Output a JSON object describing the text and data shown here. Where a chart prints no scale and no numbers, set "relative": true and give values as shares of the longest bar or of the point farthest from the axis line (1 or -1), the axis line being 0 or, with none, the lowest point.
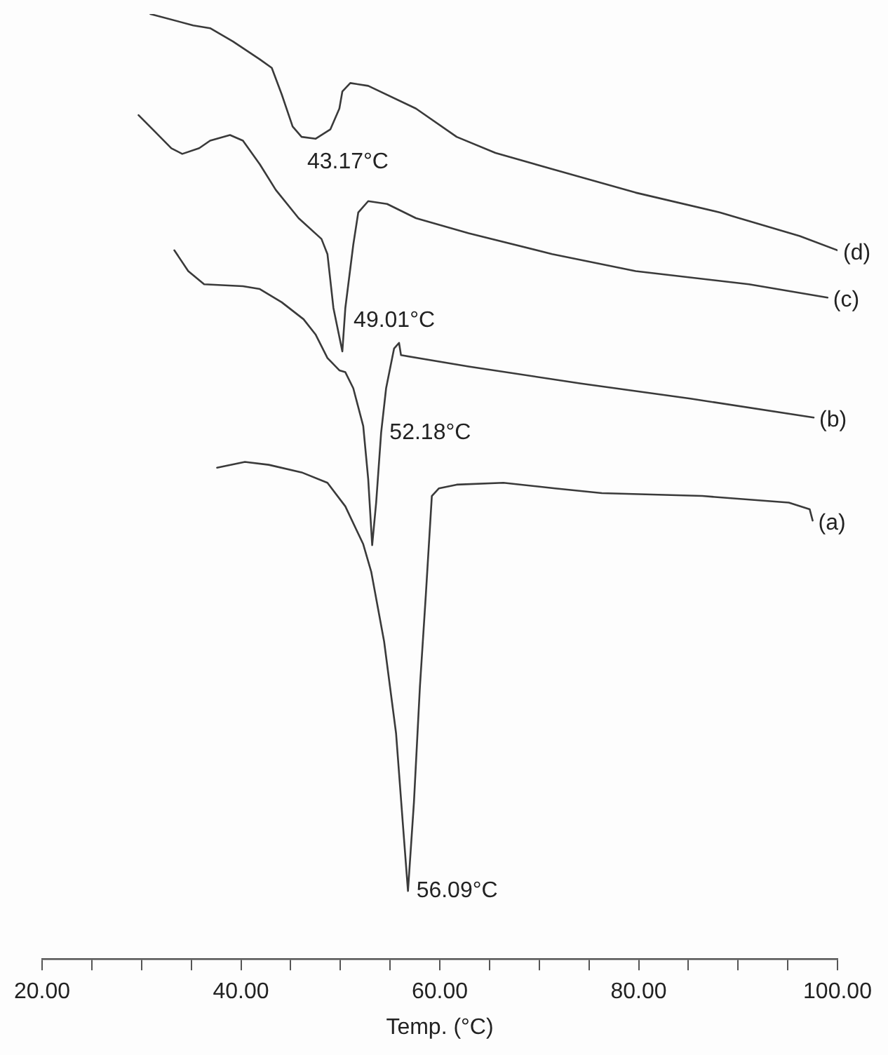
{
  "chart_data": {
    "type": "line",
    "relative": true,
    "xlabel": "Temp. (°C)",
    "xlim": [
      20,
      100
    ],
    "xticks": [
      {
        "value": 20,
        "label": "20.00"
      },
      {
        "value": 25,
        "label": null
      },
      {
        "value": 30,
        "label": null
      },
      {
        "value": 35,
        "label": null
      },
      {
        "value": 40,
        "label": "40.00"
      },
      {
        "value": 45,
        "label": null
      },
      {
        "value": 50,
        "label": null
      },
      {
        "value": 55,
        "label": null
      },
      {
        "value": 60,
        "label": "60.00"
      },
      {
        "value": 65,
        "label": null
      },
      {
        "value": 70,
        "label": null
      },
      {
        "value": 75,
        "label": null
      },
      {
        "value": 80,
        "label": "80.00"
      },
      {
        "value": 85,
        "label": null
      },
      {
        "value": 90,
        "label": null
      },
      {
        "value": 95,
        "label": null
      },
      {
        "value": 100,
        "label": "100.00"
      }
    ],
    "grid": false,
    "legend": false,
    "marker": "none",
    "line_style": "solid",
    "series": [
      {
        "name": "(d)",
        "color": "#3a3a3a",
        "x": [
          30.9,
          35.2,
          36.9,
          39.2,
          41.9,
          43.1,
          44.1,
          45.2,
          46.1,
          47.5,
          49.0,
          49.9,
          50.2,
          51.0,
          52.8,
          57.6,
          61.7,
          65.6,
          71.3,
          79.7,
          88.2,
          96.2,
          100
        ],
        "values": [
          1.0,
          0.988,
          0.985,
          0.971,
          0.952,
          0.943,
          0.915,
          0.881,
          0.87,
          0.868,
          0.878,
          0.9,
          0.918,
          0.927,
          0.924,
          0.9,
          0.87,
          0.853,
          0.836,
          0.811,
          0.79,
          0.765,
          0.75
        ]
      },
      {
        "name": "(c)",
        "color": "#3a3a3a",
        "x": [
          29.7,
          31.4,
          33.0,
          34.1,
          35.8,
          36.9,
          38.9,
          40.2,
          41.9,
          43.5,
          45.8,
          48.1,
          48.7,
          49.3,
          50.2,
          50.5,
          51.3,
          51.8,
          52.8,
          54.7,
          57.6,
          62.9,
          71.3,
          79.7,
          91.1,
          99.0
        ],
        "values": [
          0.893,
          0.875,
          0.858,
          0.852,
          0.858,
          0.866,
          0.872,
          0.866,
          0.841,
          0.814,
          0.784,
          0.762,
          0.746,
          0.689,
          0.643,
          0.689,
          0.756,
          0.79,
          0.802,
          0.799,
          0.784,
          0.768,
          0.746,
          0.728,
          0.714,
          0.7
        ]
      },
      {
        "name": "(b)",
        "color": "#3a3a3a",
        "x": [
          33.3,
          34.7,
          36.3,
          40.2,
          41.9,
          44.1,
          46.3,
          47.5,
          48.7,
          49.9,
          50.5,
          51.3,
          52.3,
          52.8,
          53.2,
          53.6,
          54.1,
          54.6,
          55.4,
          55.9,
          56.1,
          62.9,
          74.2,
          85.2,
          97.6
        ],
        "values": [
          0.75,
          0.728,
          0.714,
          0.712,
          0.709,
          0.695,
          0.677,
          0.661,
          0.636,
          0.623,
          0.621,
          0.604,
          0.564,
          0.508,
          0.438,
          0.483,
          0.557,
          0.604,
          0.646,
          0.652,
          0.639,
          0.627,
          0.609,
          0.593,
          0.573
        ]
      },
      {
        "name": "(a)",
        "color": "#3a3a3a",
        "x": [
          37.6,
          40.4,
          42.8,
          46.1,
          48.7,
          50.5,
          52.3,
          53.1,
          54.4,
          55.6,
          56.3,
          56.8,
          57.4,
          58.0,
          58.6,
          59.2,
          59.9,
          61.7,
          66.4,
          71.6,
          76.3,
          86.4,
          95.1,
          97.2,
          97.5
        ],
        "values": [
          0.52,
          0.526,
          0.523,
          0.515,
          0.504,
          0.479,
          0.439,
          0.41,
          0.336,
          0.239,
          0.141,
          0.072,
          0.166,
          0.288,
          0.386,
          0.49,
          0.498,
          0.502,
          0.504,
          0.498,
          0.493,
          0.49,
          0.483,
          0.476,
          0.464
        ]
      }
    ],
    "annotations": [
      {
        "text": "43.17°C",
        "x": 46.1,
        "y": 0.87
      },
      {
        "text": "49.01°C",
        "x": 50.2,
        "y": 0.643
      },
      {
        "text": "52.18°C",
        "x": 54.1,
        "y": 0.557
      },
      {
        "text": "56.09°C",
        "x": 56.8,
        "y": 0.072
      }
    ]
  }
}
